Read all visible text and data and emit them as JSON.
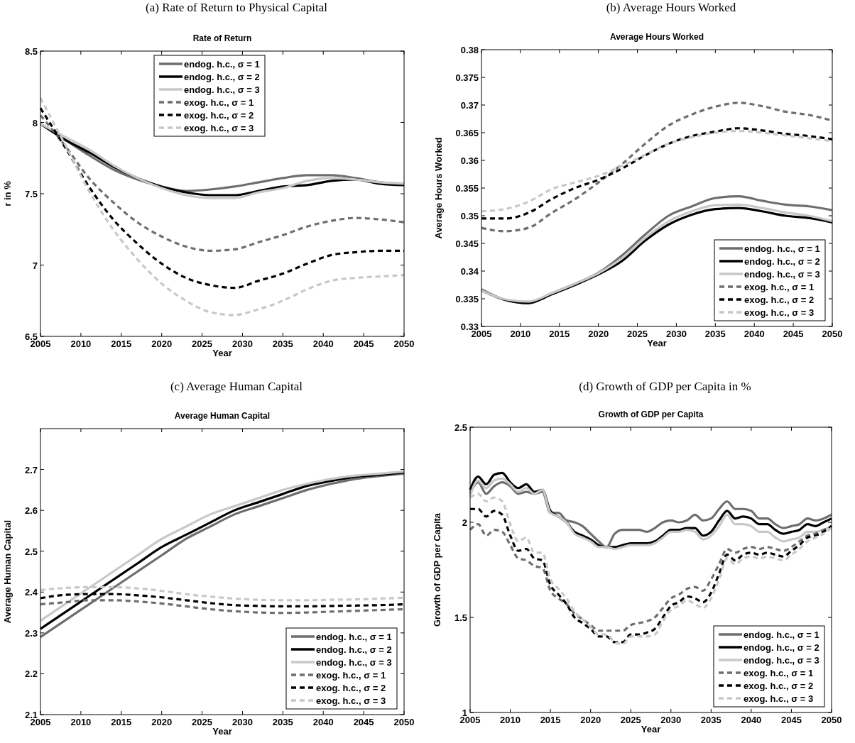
{
  "chart_data": [
    {
      "type": "line",
      "annotations": [
        "(a) Rate of Return to Physical Capital"
      ],
      "title": "Rate of Return",
      "xlabel": "Year",
      "ylabel": "r in %",
      "legend": "top",
      "grid": false,
      "x": [
        2005,
        2008,
        2011,
        2014,
        2017,
        2020,
        2023,
        2026,
        2029,
        2032,
        2035,
        2038,
        2041,
        2044,
        2047,
        2050
      ],
      "xlim": [
        2005,
        2050
      ],
      "xticks": [
        2005,
        2010,
        2015,
        2020,
        2025,
        2030,
        2035,
        2040,
        2045,
        2050
      ],
      "ylim": [
        6.5,
        8.5
      ],
      "yticks": [
        6.5,
        7,
        7.5,
        8,
        8.5
      ],
      "series": [
        {
          "name": "endog. h.c., σ = 1",
          "color": "#6e6e6e",
          "line_style": "solid",
          "values": [
            7.99,
            7.88,
            7.77,
            7.67,
            7.6,
            7.55,
            7.52,
            7.53,
            7.55,
            7.58,
            7.61,
            7.63,
            7.63,
            7.61,
            7.58,
            7.57
          ]
        },
        {
          "name": "endog. h.c., σ = 2",
          "color": "#000000",
          "line_style": "solid",
          "values": [
            7.99,
            7.88,
            7.79,
            7.69,
            7.61,
            7.55,
            7.51,
            7.49,
            7.49,
            7.52,
            7.55,
            7.56,
            7.59,
            7.6,
            7.57,
            7.56
          ]
        },
        {
          "name": "endog. h.c., σ = 3",
          "color": "#c8c8c8",
          "line_style": "solid",
          "values": [
            7.99,
            7.9,
            7.81,
            7.7,
            7.61,
            7.54,
            7.49,
            7.47,
            7.47,
            7.51,
            7.54,
            7.59,
            7.61,
            7.6,
            7.58,
            7.57
          ]
        },
        {
          "name": "exog. h.c., σ = 1",
          "color": "#6e6e6e",
          "line_style": "dashed",
          "values": [
            8.05,
            7.84,
            7.61,
            7.44,
            7.3,
            7.2,
            7.13,
            7.1,
            7.11,
            7.16,
            7.21,
            7.27,
            7.31,
            7.33,
            7.32,
            7.3
          ]
        },
        {
          "name": "exog. h.c., σ = 2",
          "color": "#000000",
          "line_style": "dashed",
          "values": [
            8.1,
            7.83,
            7.55,
            7.32,
            7.15,
            7.01,
            6.91,
            6.86,
            6.84,
            6.89,
            6.94,
            7.01,
            7.07,
            7.09,
            7.1,
            7.1
          ]
        },
        {
          "name": "exog. h.c., σ = 3",
          "color": "#c8c8c8",
          "line_style": "dashed",
          "values": [
            8.17,
            7.85,
            7.52,
            7.25,
            7.04,
            6.87,
            6.75,
            6.67,
            6.65,
            6.69,
            6.75,
            6.83,
            6.89,
            6.91,
            6.92,
            6.93
          ]
        }
      ]
    },
    {
      "type": "line",
      "annotations": [
        "(b) Average Hours Worked"
      ],
      "title": "Average Hours Worked",
      "xlabel": "Year",
      "ylabel": "Average Hours Worked",
      "legend": "bottom right",
      "grid": false,
      "x": [
        2005,
        2008,
        2011,
        2014,
        2017,
        2020,
        2023,
        2026,
        2029,
        2032,
        2035,
        2038,
        2041,
        2044,
        2047,
        2050
      ],
      "xlim": [
        2005,
        2050
      ],
      "xticks": [
        2005,
        2010,
        2015,
        2020,
        2025,
        2030,
        2035,
        2040,
        2045,
        2050
      ],
      "ylim": [
        0.33,
        0.38
      ],
      "yticks": [
        0.33,
        0.335,
        0.34,
        0.345,
        0.35,
        0.355,
        0.36,
        0.365,
        0.37,
        0.375,
        0.38
      ],
      "series": [
        {
          "name": "endog. h.c., σ = 1",
          "color": "#6e6e6e",
          "line_style": "solid",
          "values": [
            0.3367,
            0.3348,
            0.3342,
            0.336,
            0.3377,
            0.3397,
            0.3428,
            0.3466,
            0.35,
            0.3517,
            0.3532,
            0.3535,
            0.3527,
            0.352,
            0.3517,
            0.351
          ]
        },
        {
          "name": "endog. h.c., σ = 2",
          "color": "#000000",
          "line_style": "solid",
          "values": [
            0.3365,
            0.3348,
            0.3342,
            0.3358,
            0.3375,
            0.3394,
            0.3418,
            0.3455,
            0.3484,
            0.3502,
            0.3512,
            0.3514,
            0.3508,
            0.35,
            0.3496,
            0.3488
          ]
        },
        {
          "name": "endog. h.c., σ = 3",
          "color": "#c8c8c8",
          "line_style": "solid",
          "values": [
            0.3365,
            0.3349,
            0.3345,
            0.336,
            0.3377,
            0.3396,
            0.3423,
            0.346,
            0.349,
            0.3508,
            0.3519,
            0.352,
            0.3514,
            0.3506,
            0.35,
            0.349
          ]
        },
        {
          "name": "exog. h.c., σ = 1",
          "color": "#6e6e6e",
          "line_style": "dashed",
          "values": [
            0.3478,
            0.3472,
            0.3478,
            0.3505,
            0.353,
            0.356,
            0.3593,
            0.363,
            0.3663,
            0.3683,
            0.3697,
            0.3704,
            0.3698,
            0.3688,
            0.3682,
            0.3672
          ]
        },
        {
          "name": "exog. h.c., σ = 2",
          "color": "#000000",
          "line_style": "dashed",
          "values": [
            0.3495,
            0.3495,
            0.3505,
            0.353,
            0.355,
            0.3565,
            0.3585,
            0.3609,
            0.363,
            0.3644,
            0.3652,
            0.3658,
            0.3654,
            0.3648,
            0.3644,
            0.3638
          ]
        },
        {
          "name": "exog. h.c., σ = 3",
          "color": "#c8c8c8",
          "line_style": "dashed",
          "values": [
            0.3508,
            0.3512,
            0.3525,
            0.3548,
            0.356,
            0.3572,
            0.359,
            0.361,
            0.363,
            0.3642,
            0.365,
            0.3653,
            0.365,
            0.3645,
            0.364,
            0.3635
          ]
        }
      ]
    },
    {
      "type": "line",
      "annotations": [
        "(c) Average Human Capital"
      ],
      "title": "Average Human Capital",
      "xlabel": "Year",
      "ylabel": "Average Human Capital",
      "legend": "bottom right",
      "grid": false,
      "x": [
        2005,
        2008,
        2011,
        2014,
        2017,
        2020,
        2023,
        2026,
        2029,
        2032,
        2035,
        2038,
        2041,
        2044,
        2047,
        2050
      ],
      "xlim": [
        2005,
        2050
      ],
      "xticks": [
        2005,
        2010,
        2015,
        2020,
        2025,
        2030,
        2035,
        2040,
        2045,
        2050
      ],
      "ylim": [
        2.1,
        2.8
      ],
      "yticks": [
        2.1,
        2.2,
        2.3,
        2.4,
        2.5,
        2.6,
        2.7
      ],
      "series": [
        {
          "name": "endog. h.c., σ = 1",
          "color": "#6e6e6e",
          "line_style": "solid",
          "values": [
            2.29,
            2.33,
            2.37,
            2.41,
            2.45,
            2.49,
            2.53,
            2.56,
            2.59,
            2.61,
            2.63,
            2.65,
            2.665,
            2.677,
            2.684,
            2.69
          ]
        },
        {
          "name": "endog. h.c., σ = 2",
          "color": "#000000",
          "line_style": "solid",
          "values": [
            2.31,
            2.35,
            2.39,
            2.43,
            2.47,
            2.51,
            2.54,
            2.57,
            2.6,
            2.62,
            2.64,
            2.66,
            2.672,
            2.682,
            2.687,
            2.693
          ]
        },
        {
          "name": "endog. h.c., σ = 3",
          "color": "#c8c8c8",
          "line_style": "solid",
          "values": [
            2.33,
            2.37,
            2.41,
            2.45,
            2.49,
            2.53,
            2.56,
            2.59,
            2.61,
            2.63,
            2.65,
            2.665,
            2.677,
            2.685,
            2.69,
            2.695
          ]
        },
        {
          "name": "exog. h.c., σ = 1",
          "color": "#6e6e6e",
          "line_style": "dashed",
          "values": [
            2.37,
            2.375,
            2.38,
            2.38,
            2.377,
            2.372,
            2.365,
            2.358,
            2.353,
            2.35,
            2.349,
            2.35,
            2.352,
            2.354,
            2.356,
            2.358
          ]
        },
        {
          "name": "exog. h.c., σ = 2",
          "color": "#000000",
          "line_style": "dashed",
          "values": [
            2.385,
            2.393,
            2.395,
            2.395,
            2.392,
            2.387,
            2.38,
            2.373,
            2.368,
            2.366,
            2.365,
            2.365,
            2.366,
            2.367,
            2.368,
            2.37
          ]
        },
        {
          "name": "exog. h.c., σ = 3",
          "color": "#c8c8c8",
          "line_style": "dashed",
          "values": [
            2.405,
            2.41,
            2.412,
            2.412,
            2.409,
            2.403,
            2.395,
            2.389,
            2.384,
            2.381,
            2.38,
            2.38,
            2.381,
            2.382,
            2.384,
            2.386
          ]
        }
      ]
    },
    {
      "type": "line",
      "annotations": [
        "(d) Growth of GDP per Capita in %"
      ],
      "title": "Growth of GDP per Capita",
      "xlabel": "Year",
      "ylabel": "Growth of GDP per Capita",
      "legend": "bottom right",
      "grid": false,
      "x": [
        2005,
        2006,
        2007,
        2008,
        2009,
        2010,
        2011,
        2012,
        2013,
        2014,
        2015,
        2016,
        2017,
        2018,
        2019,
        2020,
        2021,
        2022,
        2023,
        2024,
        2025,
        2026,
        2027,
        2028,
        2029,
        2030,
        2031,
        2032,
        2033,
        2034,
        2035,
        2036,
        2037,
        2038,
        2039,
        2040,
        2041,
        2042,
        2043,
        2044,
        2045,
        2046,
        2047,
        2048,
        2049,
        2050
      ],
      "xlim": [
        2005,
        2050
      ],
      "xticks": [
        2005,
        2010,
        2015,
        2020,
        2025,
        2030,
        2035,
        2040,
        2045,
        2050
      ],
      "ylim": [
        1,
        2.5
      ],
      "yticks": [
        1,
        1.5,
        2,
        2.5
      ],
      "series": [
        {
          "name": "endog. h.c., σ = 1",
          "color": "#6e6e6e",
          "line_style": "solid",
          "values": [
            2.15,
            2.21,
            2.15,
            2.19,
            2.21,
            2.19,
            2.15,
            2.16,
            2.15,
            2.16,
            2.05,
            2.05,
            2.01,
            2.0,
            1.98,
            1.94,
            1.9,
            1.87,
            1.94,
            1.96,
            1.96,
            1.96,
            1.95,
            1.97,
            2.0,
            2.01,
            2.0,
            2.01,
            2.04,
            2.01,
            2.02,
            2.07,
            2.11,
            2.07,
            2.07,
            2.06,
            2.02,
            2.02,
            1.99,
            1.97,
            1.98,
            1.99,
            2.02,
            2.01,
            2.02,
            2.04
          ]
        },
        {
          "name": "endog. h.c., σ = 2",
          "color": "#000000",
          "line_style": "solid",
          "values": [
            2.17,
            2.24,
            2.2,
            2.25,
            2.26,
            2.21,
            2.18,
            2.2,
            2.16,
            2.17,
            2.06,
            2.03,
            2.0,
            1.95,
            1.93,
            1.91,
            1.88,
            1.87,
            1.87,
            1.88,
            1.89,
            1.89,
            1.89,
            1.9,
            1.93,
            1.96,
            1.96,
            1.97,
            1.97,
            1.93,
            1.95,
            2.01,
            2.06,
            2.02,
            2.03,
            2.02,
            1.99,
            1.99,
            1.96,
            1.94,
            1.95,
            1.96,
            1.99,
            1.98,
            2.0,
            2.02
          ]
        },
        {
          "name": "endog. h.c., σ = 3",
          "color": "#c8c8c8",
          "line_style": "solid",
          "values": [
            2.14,
            2.22,
            2.18,
            2.22,
            2.23,
            2.2,
            2.16,
            2.18,
            2.15,
            2.17,
            2.05,
            2.03,
            2.0,
            1.94,
            1.92,
            1.9,
            1.87,
            1.87,
            1.86,
            1.87,
            1.88,
            1.88,
            1.88,
            1.89,
            1.92,
            1.95,
            1.95,
            1.96,
            1.95,
            1.91,
            1.93,
            1.98,
            2.04,
            1.99,
            1.99,
            1.98,
            1.95,
            1.95,
            1.92,
            1.9,
            1.91,
            1.92,
            1.95,
            1.95,
            1.96,
            1.98
          ]
        },
        {
          "name": "exog. h.c., σ = 1",
          "color": "#6e6e6e",
          "line_style": "dashed",
          "values": [
            1.96,
            1.99,
            1.93,
            1.96,
            1.95,
            1.88,
            1.81,
            1.8,
            1.77,
            1.76,
            1.64,
            1.6,
            1.57,
            1.52,
            1.49,
            1.46,
            1.43,
            1.43,
            1.43,
            1.43,
            1.46,
            1.47,
            1.48,
            1.5,
            1.55,
            1.6,
            1.62,
            1.65,
            1.66,
            1.64,
            1.7,
            1.78,
            1.86,
            1.84,
            1.86,
            1.87,
            1.86,
            1.87,
            1.86,
            1.85,
            1.87,
            1.9,
            1.93,
            1.94,
            1.96,
            1.98
          ]
        },
        {
          "name": "exog. h.c., σ = 2",
          "color": "#000000",
          "line_style": "dashed",
          "values": [
            2.07,
            2.07,
            2.03,
            2.06,
            2.04,
            1.93,
            1.85,
            1.86,
            1.81,
            1.8,
            1.67,
            1.62,
            1.57,
            1.5,
            1.47,
            1.44,
            1.4,
            1.4,
            1.37,
            1.37,
            1.41,
            1.41,
            1.42,
            1.44,
            1.5,
            1.56,
            1.58,
            1.61,
            1.6,
            1.58,
            1.63,
            1.73,
            1.83,
            1.8,
            1.83,
            1.84,
            1.83,
            1.84,
            1.83,
            1.82,
            1.85,
            1.88,
            1.92,
            1.93,
            1.95,
            1.98
          ]
        },
        {
          "name": "exog. h.c., σ = 3",
          "color": "#c8c8c8",
          "line_style": "dashed",
          "values": [
            2.13,
            2.15,
            2.11,
            2.13,
            2.11,
            1.99,
            1.9,
            1.92,
            1.84,
            1.84,
            1.7,
            1.65,
            1.6,
            1.53,
            1.49,
            1.45,
            1.41,
            1.41,
            1.37,
            1.36,
            1.4,
            1.4,
            1.4,
            1.41,
            1.48,
            1.54,
            1.56,
            1.59,
            1.57,
            1.55,
            1.6,
            1.7,
            1.81,
            1.78,
            1.81,
            1.82,
            1.81,
            1.82,
            1.81,
            1.8,
            1.83,
            1.86,
            1.9,
            1.92,
            1.94,
            1.97
          ]
        }
      ]
    }
  ]
}
